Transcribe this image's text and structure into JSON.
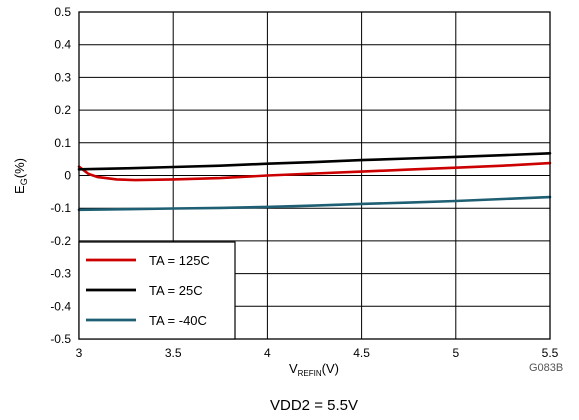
{
  "chart_data": {
    "type": "line",
    "xlabel": {
      "main": "V",
      "sub": "REFIN",
      "unit": "(V)"
    },
    "ylabel": {
      "main": "E",
      "sub": "G",
      "unit": "(%)"
    },
    "xlim": [
      3,
      5.5
    ],
    "ylim": [
      -0.5,
      0.5
    ],
    "x_ticks": [
      "3",
      "3.5",
      "4",
      "4.5",
      "5",
      "5.5"
    ],
    "y_ticks": [
      "0.5",
      "0.4",
      "0.3",
      "0.2",
      "0.1",
      "0",
      "-0.1",
      "-0.2",
      "-0.3",
      "-0.4",
      "-0.5"
    ],
    "grid": true,
    "legend_position": "bottom-left",
    "series": [
      {
        "name": "TA = 125C",
        "color": "#cc0000",
        "x": [
          3.0,
          3.05,
          3.1,
          3.2,
          3.3,
          3.5,
          3.75,
          4.0,
          4.25,
          4.5,
          4.75,
          5.0,
          5.25,
          5.5
        ],
        "y": [
          0.027,
          0.005,
          -0.005,
          -0.012,
          -0.014,
          -0.012,
          -0.008,
          0.0,
          0.006,
          0.012,
          0.018,
          0.024,
          0.03,
          0.038
        ]
      },
      {
        "name": "TA = 25C",
        "color": "#000000",
        "x": [
          3.0,
          3.25,
          3.5,
          3.75,
          4.0,
          4.25,
          4.5,
          4.75,
          5.0,
          5.25,
          5.5
        ],
        "y": [
          0.019,
          0.022,
          0.026,
          0.03,
          0.036,
          0.041,
          0.047,
          0.052,
          0.057,
          0.062,
          0.068
        ]
      },
      {
        "name": "TA = -40C",
        "color": "#1f5f73",
        "x": [
          3.0,
          3.25,
          3.5,
          3.75,
          4.0,
          4.25,
          4.5,
          4.75,
          5.0,
          5.25,
          5.5
        ],
        "y": [
          -0.105,
          -0.103,
          -0.101,
          -0.099,
          -0.096,
          -0.092,
          -0.087,
          -0.083,
          -0.078,
          -0.072,
          -0.066
        ]
      }
    ],
    "figure_id": "G083B",
    "caption": "VDD2 = 5.5V"
  }
}
